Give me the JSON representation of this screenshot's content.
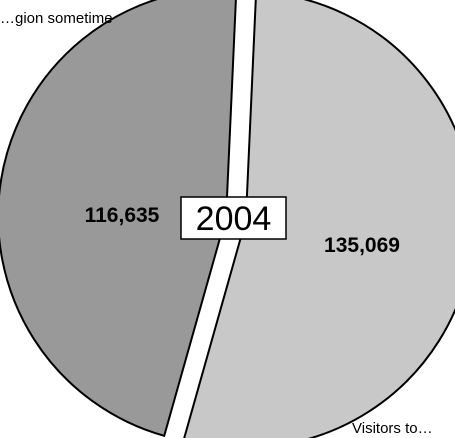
{
  "chart_data": {
    "type": "pie",
    "title": "2004",
    "categories": [
      "…gion sometime",
      "Visitors to…"
    ],
    "values": [
      116635,
      135069
    ],
    "value_labels": [
      "116,635",
      "135,069"
    ],
    "colors": [
      "#999999",
      "#c8c8c8"
    ],
    "exploded": true,
    "legend": "none"
  }
}
